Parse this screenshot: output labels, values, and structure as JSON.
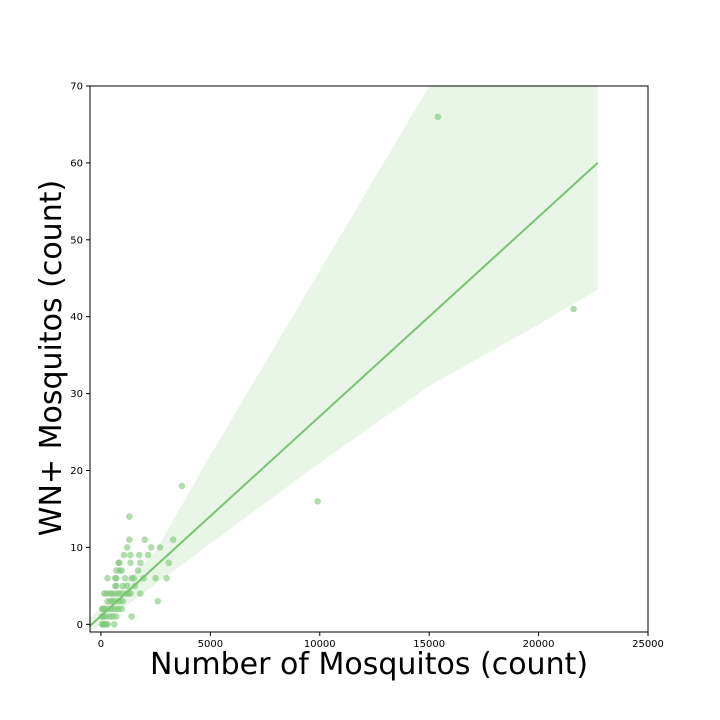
{
  "chart_data": {
    "type": "scatter",
    "title": "",
    "xlabel": "Number of Mosquitos (count)",
    "ylabel": "WN+ Mosquitos (count)",
    "xlim": [
      -500,
      25000
    ],
    "ylim": [
      -1,
      70
    ],
    "xticks": [
      0,
      5000,
      10000,
      15000,
      20000,
      25000
    ],
    "yticks": [
      0,
      10,
      20,
      30,
      40,
      50,
      60,
      70
    ],
    "grid": false,
    "legend": "none",
    "point_color": "#7bc774",
    "line_color": "#77c46f",
    "band_color": "#e9f5e6",
    "frame_color": "#000000",
    "points": [
      [
        15400,
        66
      ],
      [
        21600,
        41
      ],
      [
        9900,
        16
      ],
      [
        3700,
        18
      ],
      [
        1300,
        14
      ],
      [
        3300,
        11
      ],
      [
        2000,
        11
      ],
      [
        1300,
        11
      ],
      [
        2300,
        10
      ],
      [
        2700,
        10
      ],
      [
        1200,
        10
      ],
      [
        1050,
        9
      ],
      [
        1350,
        9
      ],
      [
        1750,
        9
      ],
      [
        2150,
        9
      ],
      [
        3100,
        8
      ],
      [
        1800,
        8
      ],
      [
        1350,
        8
      ],
      [
        850,
        8
      ],
      [
        800,
        8
      ],
      [
        700,
        7
      ],
      [
        850,
        7
      ],
      [
        1700,
        7
      ],
      [
        950,
        7
      ],
      [
        300,
        6
      ],
      [
        650,
        6
      ],
      [
        700,
        6
      ],
      [
        1100,
        6
      ],
      [
        1400,
        6
      ],
      [
        1500,
        6
      ],
      [
        1950,
        6
      ],
      [
        2500,
        6
      ],
      [
        3000,
        6
      ],
      [
        650,
        5
      ],
      [
        1000,
        5
      ],
      [
        1200,
        5
      ],
      [
        1550,
        5
      ],
      [
        700,
        5
      ],
      [
        150,
        4
      ],
      [
        250,
        4
      ],
      [
        500,
        4
      ],
      [
        650,
        4
      ],
      [
        800,
        4
      ],
      [
        950,
        4
      ],
      [
        1150,
        4
      ],
      [
        1250,
        4
      ],
      [
        1350,
        4
      ],
      [
        1800,
        4
      ],
      [
        400,
        4
      ],
      [
        300,
        3
      ],
      [
        450,
        3
      ],
      [
        550,
        3
      ],
      [
        700,
        3
      ],
      [
        850,
        3
      ],
      [
        1000,
        3
      ],
      [
        2600,
        3
      ],
      [
        100,
        2
      ],
      [
        200,
        2
      ],
      [
        350,
        2
      ],
      [
        500,
        2
      ],
      [
        650,
        2
      ],
      [
        800,
        2
      ],
      [
        950,
        2
      ],
      [
        100,
        1
      ],
      [
        250,
        1
      ],
      [
        400,
        1
      ],
      [
        550,
        1
      ],
      [
        700,
        1
      ],
      [
        1400,
        1
      ],
      [
        50,
        0
      ],
      [
        150,
        0
      ],
      [
        250,
        0
      ],
      [
        100,
        0
      ],
      [
        300,
        0
      ],
      [
        600,
        0
      ],
      [
        50,
        1
      ],
      [
        50,
        2
      ]
    ],
    "regression": {
      "x": [
        -500,
        22700
      ],
      "y": [
        -0.2,
        60
      ]
    },
    "confidence_band": {
      "x": [
        -500,
        2500,
        5000,
        10000,
        15000,
        17500,
        20000,
        22700
      ],
      "upper": [
        0.8,
        9.5,
        22,
        46,
        70,
        70,
        70,
        70
      ],
      "lower": [
        -1,
        5.2,
        10.5,
        21,
        31,
        35,
        39,
        43.5
      ]
    }
  }
}
